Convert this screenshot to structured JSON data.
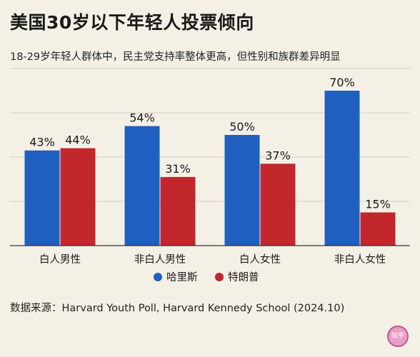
{
  "header": {
    "title": "美国30岁以下年轻人投票倾向",
    "subtitle": "18-29岁年轻人群体中，民主党支持率整体更高，但性别和族群差异明显"
  },
  "footer": {
    "source": "数据来源：Harvard Youth Poll, Harvard Kennedy School (2024.10)"
  },
  "seal": {
    "text": "知乎"
  },
  "chart_data": {
    "type": "bar",
    "categories": [
      "白人男性",
      "非白人男性",
      "白人女性",
      "非白人女性"
    ],
    "series": [
      {
        "name": "哈里斯",
        "values": [
          43,
          54,
          50,
          70
        ],
        "color": "#1f5fbf"
      },
      {
        "name": "特朗普",
        "values": [
          44,
          31,
          37,
          15
        ],
        "color": "#c1272d"
      }
    ],
    "value_suffix": "%",
    "ylim": [
      0,
      80
    ],
    "grid": true,
    "legend_position": "bottom-center"
  }
}
